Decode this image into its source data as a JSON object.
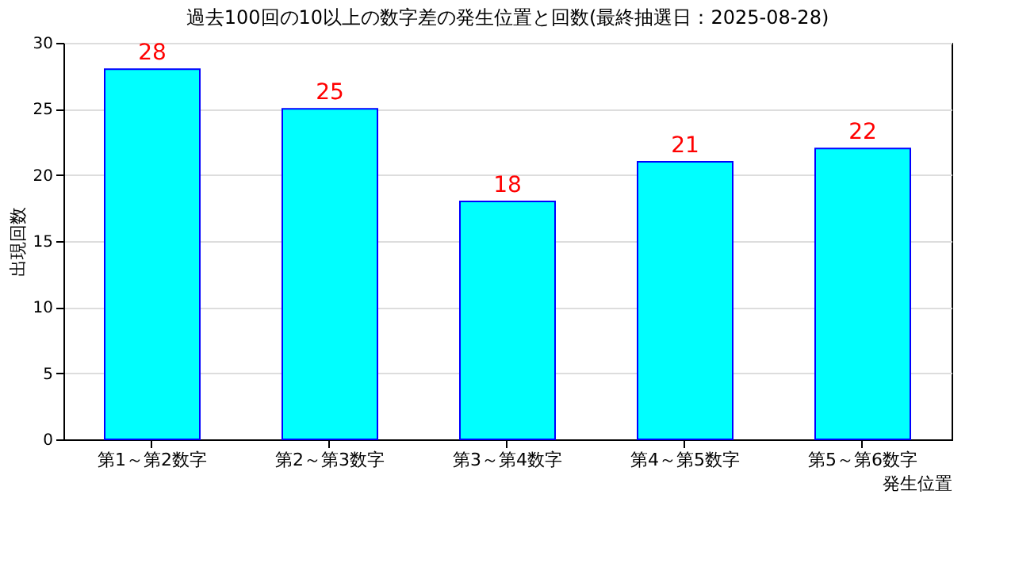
{
  "chart_data": {
    "type": "bar",
    "title": "過去100回の10以上の数字差の発生位置と回数(最終抽選日：2025-08-28)",
    "xlabel": "発生位置",
    "ylabel": "出現回数",
    "categories": [
      "第1～第2数字",
      "第2～第3数字",
      "第3～第4数字",
      "第4～第5数字",
      "第5～第6数字"
    ],
    "values": [
      28,
      25,
      18,
      21,
      22
    ],
    "color": "#00ffff",
    "ylim": [
      0,
      30
    ],
    "yticks": [
      0,
      5,
      10,
      15,
      20,
      25,
      30
    ],
    "grid": "y",
    "data_labels": true
  }
}
